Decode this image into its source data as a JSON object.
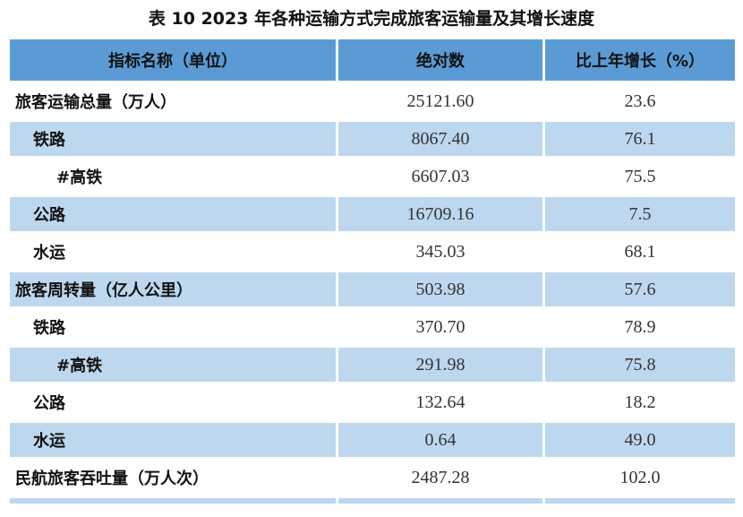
{
  "title": "表 10   2023 年各种运输方式完成旅客运输量及其增长速度",
  "headers": {
    "name": "指标名称（单位）",
    "abs": "绝对数",
    "growth": "比上年增长（%）"
  },
  "rows": [
    {
      "name": "旅客运输总量（万人）",
      "value": "25121.60",
      "growth": "23.6"
    },
    {
      "name": "铁路",
      "value": "8067.40",
      "growth": "76.1"
    },
    {
      "name": "#高铁",
      "value": "6607.03",
      "growth": "75.5"
    },
    {
      "name": "公路",
      "value": "16709.16",
      "growth": "7.5"
    },
    {
      "name": "水运",
      "value": "345.03",
      "growth": "68.1"
    },
    {
      "name": "旅客周转量（亿人公里）",
      "value": "503.98",
      "growth": "57.6"
    },
    {
      "name": "铁路",
      "value": "370.70",
      "growth": "78.9"
    },
    {
      "name": "#高铁",
      "value": "291.98",
      "growth": "75.8"
    },
    {
      "name": "公路",
      "value": "132.64",
      "growth": "18.2"
    },
    {
      "name": "水运",
      "value": "0.64",
      "growth": "49.0"
    },
    {
      "name": "民航旅客吞吐量（万人次）",
      "value": "2487.28",
      "growth": "102.0"
    }
  ]
}
